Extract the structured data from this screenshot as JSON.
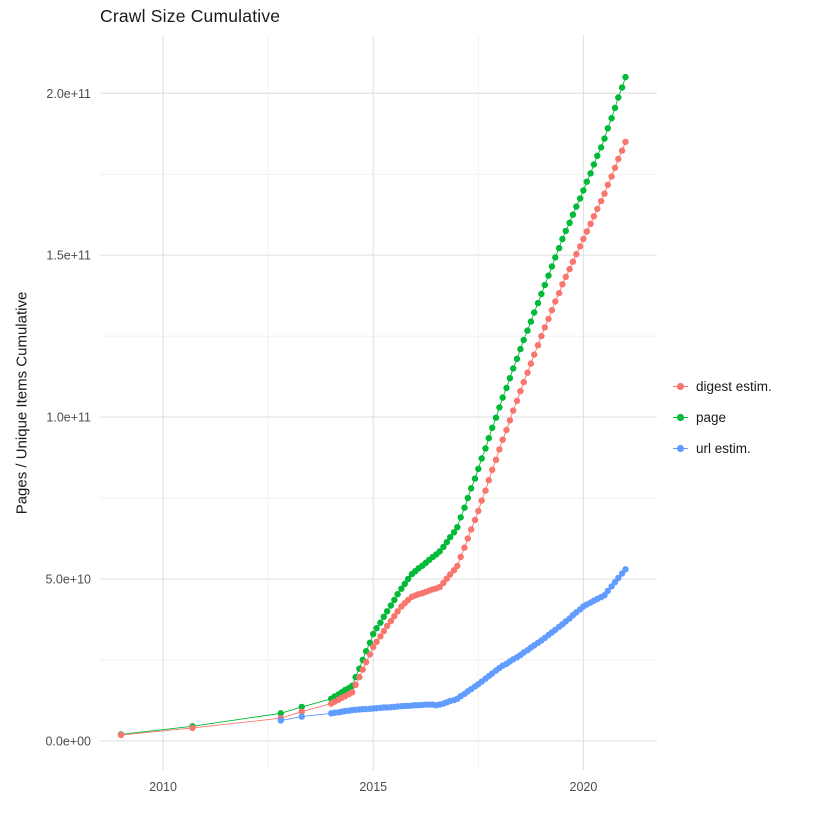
{
  "chart": {
    "background": "#ffffff",
    "grid_major_color": "#e3e3e3",
    "grid_minor_color": "#f1f1f1",
    "tick_label_color": "#4d4d4d",
    "text_color": "#1a1a1a"
  },
  "chart_data": {
    "type": "scatter",
    "title": "Crawl Size Cumulative",
    "xlabel": "",
    "ylabel": "Pages / Unique Items Cumulative",
    "legend_position": "right",
    "grid": true,
    "x_domain": [
      2008.5,
      2021.75
    ],
    "y_domain_billions": [
      -9,
      218
    ],
    "y_unit": 1000000000,
    "x_ticks": [
      {
        "v": 2010,
        "label": "2010"
      },
      {
        "v": 2015,
        "label": "2015"
      },
      {
        "v": 2020,
        "label": "2020"
      }
    ],
    "x_minor_ticks": [
      2012.5,
      2017.5
    ],
    "y_ticks": [
      {
        "v": 0,
        "label": "0.0e+00"
      },
      {
        "v": 50,
        "label": "5.0e+10"
      },
      {
        "v": 100,
        "label": "1.0e+11"
      },
      {
        "v": 150,
        "label": "1.5e+11"
      },
      {
        "v": 200,
        "label": "2.0e+11"
      }
    ],
    "y_minor_ticks": [
      25,
      75,
      125,
      175
    ],
    "series": [
      {
        "name": "digest estim.",
        "color": "#F8766D",
        "points_year_billions": [
          [
            2009.0,
            1.8
          ],
          [
            2010.7,
            4.0
          ],
          [
            2012.8,
            7.0
          ],
          [
            2013.3,
            9.0
          ],
          [
            2014.0,
            11.5
          ],
          [
            2014.08,
            12.1
          ],
          [
            2014.17,
            12.7
          ],
          [
            2014.25,
            13.3
          ],
          [
            2014.33,
            13.8
          ],
          [
            2014.42,
            14.4
          ],
          [
            2014.5,
            15.0
          ],
          [
            2014.58,
            17.3
          ],
          [
            2014.67,
            19.7
          ],
          [
            2014.75,
            22.0
          ],
          [
            2014.83,
            24.3
          ],
          [
            2014.92,
            26.7
          ],
          [
            2015.0,
            29.0
          ],
          [
            2015.08,
            30.6
          ],
          [
            2015.17,
            32.3
          ],
          [
            2015.25,
            33.9
          ],
          [
            2015.33,
            35.5
          ],
          [
            2015.42,
            37.0
          ],
          [
            2015.5,
            38.5
          ],
          [
            2015.58,
            40.0
          ],
          [
            2015.67,
            41.5
          ],
          [
            2015.75,
            42.5
          ],
          [
            2015.83,
            43.5
          ],
          [
            2015.92,
            44.5
          ],
          [
            2016.0,
            44.9
          ],
          [
            2016.08,
            45.3
          ],
          [
            2016.17,
            45.6
          ],
          [
            2016.25,
            46.0
          ],
          [
            2016.33,
            46.4
          ],
          [
            2016.42,
            46.8
          ],
          [
            2016.5,
            47.1
          ],
          [
            2016.58,
            47.5
          ],
          [
            2016.67,
            48.8
          ],
          [
            2016.75,
            50.1
          ],
          [
            2016.83,
            51.4
          ],
          [
            2016.92,
            52.7
          ],
          [
            2017.0,
            54.0
          ],
          [
            2017.08,
            56.8
          ],
          [
            2017.17,
            59.7
          ],
          [
            2017.25,
            62.5
          ],
          [
            2017.33,
            65.3
          ],
          [
            2017.42,
            68.2
          ],
          [
            2017.5,
            71.0
          ],
          [
            2017.58,
            74.2
          ],
          [
            2017.67,
            77.3
          ],
          [
            2017.75,
            80.5
          ],
          [
            2017.83,
            83.7
          ],
          [
            2017.92,
            86.8
          ],
          [
            2018.0,
            90.0
          ],
          [
            2018.08,
            93.0
          ],
          [
            2018.17,
            96.0
          ],
          [
            2018.25,
            99.0
          ],
          [
            2018.33,
            102.0
          ],
          [
            2018.42,
            105.0
          ],
          [
            2018.5,
            108.0
          ],
          [
            2018.58,
            110.8
          ],
          [
            2018.67,
            113.7
          ],
          [
            2018.75,
            116.5
          ],
          [
            2018.83,
            119.3
          ],
          [
            2018.92,
            122.2
          ],
          [
            2019.0,
            125.0
          ],
          [
            2019.08,
            127.7
          ],
          [
            2019.17,
            130.3
          ],
          [
            2019.25,
            133.0
          ],
          [
            2019.33,
            135.7
          ],
          [
            2019.42,
            138.3
          ],
          [
            2019.5,
            141.0
          ],
          [
            2019.58,
            143.3
          ],
          [
            2019.67,
            145.7
          ],
          [
            2019.75,
            148.0
          ],
          [
            2019.83,
            150.3
          ],
          [
            2019.92,
            152.7
          ],
          [
            2020.0,
            155.0
          ],
          [
            2020.08,
            157.3
          ],
          [
            2020.17,
            159.7
          ],
          [
            2020.25,
            162.0
          ],
          [
            2020.33,
            164.3
          ],
          [
            2020.42,
            166.7
          ],
          [
            2020.5,
            169.0
          ],
          [
            2020.58,
            171.7
          ],
          [
            2020.67,
            174.3
          ],
          [
            2020.75,
            177.0
          ],
          [
            2020.83,
            179.7
          ],
          [
            2020.92,
            182.3
          ],
          [
            2021.0,
            185.0
          ]
        ]
      },
      {
        "name": "page",
        "color": "#00BA38",
        "points_year_billions": [
          [
            2009.0,
            2.0
          ],
          [
            2010.7,
            4.5
          ],
          [
            2012.8,
            8.5
          ],
          [
            2013.3,
            10.5
          ],
          [
            2014.0,
            13.0
          ],
          [
            2014.08,
            13.7
          ],
          [
            2014.17,
            14.3
          ],
          [
            2014.25,
            15.0
          ],
          [
            2014.33,
            15.7
          ],
          [
            2014.42,
            16.3
          ],
          [
            2014.5,
            17.0
          ],
          [
            2014.58,
            19.7
          ],
          [
            2014.67,
            22.3
          ],
          [
            2014.75,
            25.0
          ],
          [
            2014.83,
            27.7
          ],
          [
            2014.92,
            30.3
          ],
          [
            2015.0,
            33.0
          ],
          [
            2015.08,
            34.8
          ],
          [
            2015.17,
            36.5
          ],
          [
            2015.25,
            38.3
          ],
          [
            2015.33,
            40.0
          ],
          [
            2015.42,
            41.8
          ],
          [
            2015.5,
            43.5
          ],
          [
            2015.58,
            45.3
          ],
          [
            2015.67,
            47.0
          ],
          [
            2015.75,
            48.5
          ],
          [
            2015.83,
            50.0
          ],
          [
            2015.92,
            51.5
          ],
          [
            2016.0,
            52.4
          ],
          [
            2016.08,
            53.3
          ],
          [
            2016.17,
            54.1
          ],
          [
            2016.25,
            55.0
          ],
          [
            2016.33,
            55.9
          ],
          [
            2016.42,
            56.8
          ],
          [
            2016.5,
            57.6
          ],
          [
            2016.58,
            58.5
          ],
          [
            2016.67,
            59.9
          ],
          [
            2016.75,
            61.4
          ],
          [
            2016.83,
            62.9
          ],
          [
            2016.92,
            64.4
          ],
          [
            2017.0,
            66.0
          ],
          [
            2017.08,
            69.0
          ],
          [
            2017.17,
            72.0
          ],
          [
            2017.25,
            75.0
          ],
          [
            2017.33,
            78.0
          ],
          [
            2017.42,
            81.0
          ],
          [
            2017.5,
            84.0
          ],
          [
            2017.58,
            87.2
          ],
          [
            2017.67,
            90.3
          ],
          [
            2017.75,
            93.5
          ],
          [
            2017.83,
            96.7
          ],
          [
            2017.92,
            99.8
          ],
          [
            2018.0,
            103.0
          ],
          [
            2018.08,
            106.0
          ],
          [
            2018.17,
            109.0
          ],
          [
            2018.25,
            112.0
          ],
          [
            2018.33,
            115.0
          ],
          [
            2018.42,
            118.0
          ],
          [
            2018.5,
            121.0
          ],
          [
            2018.58,
            123.8
          ],
          [
            2018.67,
            126.7
          ],
          [
            2018.75,
            129.5
          ],
          [
            2018.83,
            132.3
          ],
          [
            2018.92,
            135.2
          ],
          [
            2019.0,
            138.0
          ],
          [
            2019.08,
            140.8
          ],
          [
            2019.17,
            143.7
          ],
          [
            2019.25,
            146.5
          ],
          [
            2019.33,
            149.3
          ],
          [
            2019.42,
            152.2
          ],
          [
            2019.5,
            155.0
          ],
          [
            2019.58,
            157.5
          ],
          [
            2019.67,
            160.0
          ],
          [
            2019.75,
            162.5
          ],
          [
            2019.83,
            165.0
          ],
          [
            2019.92,
            167.5
          ],
          [
            2020.0,
            170.0
          ],
          [
            2020.08,
            172.7
          ],
          [
            2020.17,
            175.3
          ],
          [
            2020.25,
            178.0
          ],
          [
            2020.33,
            180.7
          ],
          [
            2020.42,
            183.3
          ],
          [
            2020.5,
            186.0
          ],
          [
            2020.58,
            189.2
          ],
          [
            2020.67,
            192.3
          ],
          [
            2020.75,
            195.5
          ],
          [
            2020.83,
            198.7
          ],
          [
            2020.92,
            201.8
          ],
          [
            2021.0,
            205.0
          ]
        ]
      },
      {
        "name": "url estim.",
        "color": "#619CFF",
        "points_year_billions": [
          [
            2012.8,
            6.3
          ],
          [
            2013.3,
            7.5
          ],
          [
            2014.0,
            8.5
          ],
          [
            2014.08,
            8.7
          ],
          [
            2014.17,
            8.8
          ],
          [
            2014.25,
            9.0
          ],
          [
            2014.33,
            9.2
          ],
          [
            2014.42,
            9.3
          ],
          [
            2014.5,
            9.5
          ],
          [
            2014.58,
            9.6
          ],
          [
            2014.67,
            9.7
          ],
          [
            2014.75,
            9.8
          ],
          [
            2014.83,
            9.8
          ],
          [
            2014.92,
            9.9
          ],
          [
            2015.0,
            10.0
          ],
          [
            2015.08,
            10.1
          ],
          [
            2015.17,
            10.2
          ],
          [
            2015.25,
            10.3
          ],
          [
            2015.33,
            10.3
          ],
          [
            2015.42,
            10.4
          ],
          [
            2015.5,
            10.5
          ],
          [
            2015.58,
            10.6
          ],
          [
            2015.67,
            10.7
          ],
          [
            2015.75,
            10.8
          ],
          [
            2015.83,
            10.8
          ],
          [
            2015.92,
            10.9
          ],
          [
            2016.0,
            11.0
          ],
          [
            2016.08,
            11.0
          ],
          [
            2016.17,
            11.1
          ],
          [
            2016.25,
            11.2
          ],
          [
            2016.33,
            11.2
          ],
          [
            2016.42,
            11.2
          ],
          [
            2016.5,
            11.0
          ],
          [
            2016.58,
            11.2
          ],
          [
            2016.67,
            11.5
          ],
          [
            2016.75,
            11.9
          ],
          [
            2016.83,
            12.3
          ],
          [
            2016.92,
            12.6
          ],
          [
            2017.0,
            13.0
          ],
          [
            2017.08,
            13.8
          ],
          [
            2017.17,
            14.5
          ],
          [
            2017.25,
            15.3
          ],
          [
            2017.33,
            16.0
          ],
          [
            2017.42,
            16.8
          ],
          [
            2017.5,
            17.5
          ],
          [
            2017.58,
            18.3
          ],
          [
            2017.67,
            19.2
          ],
          [
            2017.75,
            20.0
          ],
          [
            2017.83,
            20.8
          ],
          [
            2017.92,
            21.7
          ],
          [
            2018.0,
            22.5
          ],
          [
            2018.08,
            23.2
          ],
          [
            2018.17,
            23.8
          ],
          [
            2018.25,
            24.5
          ],
          [
            2018.33,
            25.2
          ],
          [
            2018.42,
            25.8
          ],
          [
            2018.5,
            26.5
          ],
          [
            2018.58,
            27.3
          ],
          [
            2018.67,
            28.0
          ],
          [
            2018.75,
            28.8
          ],
          [
            2018.83,
            29.5
          ],
          [
            2018.92,
            30.3
          ],
          [
            2019.0,
            31.0
          ],
          [
            2019.08,
            31.8
          ],
          [
            2019.17,
            32.7
          ],
          [
            2019.25,
            33.5
          ],
          [
            2019.33,
            34.3
          ],
          [
            2019.42,
            35.2
          ],
          [
            2019.5,
            36.0
          ],
          [
            2019.58,
            36.9
          ],
          [
            2019.67,
            37.8
          ],
          [
            2019.75,
            38.8
          ],
          [
            2019.83,
            39.7
          ],
          [
            2019.92,
            40.6
          ],
          [
            2020.0,
            41.5
          ],
          [
            2020.08,
            42.1
          ],
          [
            2020.17,
            42.7
          ],
          [
            2020.25,
            43.3
          ],
          [
            2020.33,
            43.8
          ],
          [
            2020.42,
            44.4
          ],
          [
            2020.5,
            45.0
          ],
          [
            2020.58,
            46.3
          ],
          [
            2020.67,
            47.7
          ],
          [
            2020.75,
            49.0
          ],
          [
            2020.83,
            50.3
          ],
          [
            2020.92,
            51.7
          ],
          [
            2021.0,
            53.0
          ]
        ]
      }
    ]
  }
}
